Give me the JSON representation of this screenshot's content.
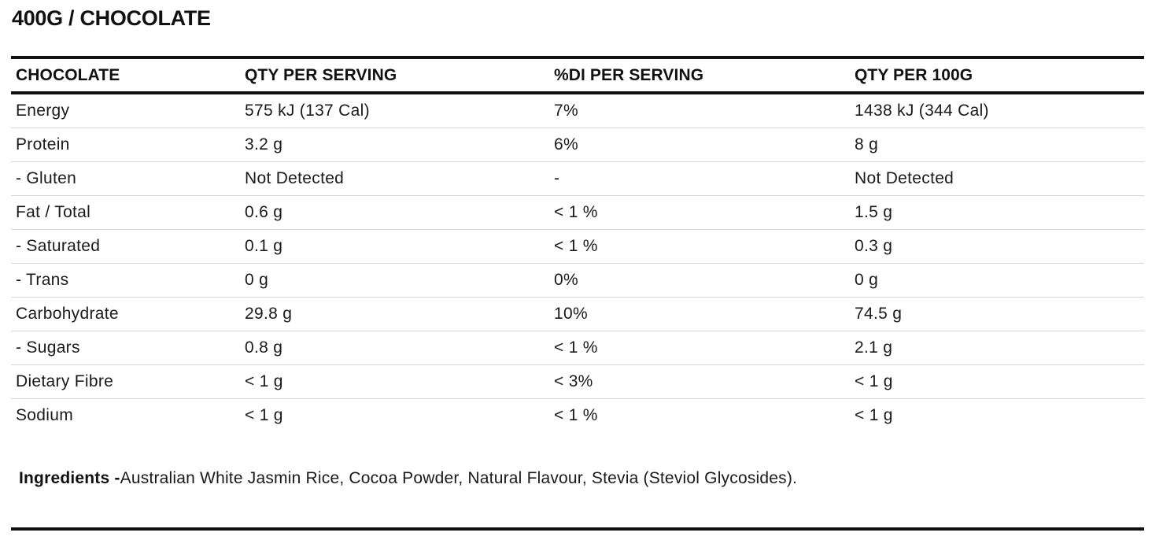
{
  "title": "400G / CHOCOLATE",
  "table": {
    "headers": [
      "CHOCOLATE",
      "QTY PER SERVING",
      "%DI PER SERVING",
      "QTY PER 100G"
    ],
    "rows": [
      [
        "Energy",
        "575 kJ (137 Cal)",
        "7%",
        "1438 kJ (344 Cal)"
      ],
      [
        "Protein",
        "3.2 g",
        "6%",
        "8 g"
      ],
      [
        "- Gluten",
        "Not Detected",
        "-",
        "Not Detected"
      ],
      [
        "Fat / Total",
        "0.6 g",
        "< 1 %",
        "1.5 g"
      ],
      [
        "- Saturated",
        "0.1 g",
        "< 1 %",
        "0.3 g"
      ],
      [
        "- Trans",
        "0 g",
        "0%",
        "0 g"
      ],
      [
        "Carbohydrate",
        "29.8 g",
        "10%",
        "74.5 g"
      ],
      [
        "- Sugars",
        "0.8 g",
        "< 1 %",
        "2.1 g"
      ],
      [
        "Dietary Fibre",
        "< 1 g",
        "< 3%",
        "< 1 g"
      ],
      [
        "Sodium",
        "< 1 g",
        "< 1 %",
        "< 1 g"
      ]
    ]
  },
  "ingredients": {
    "label": "Ingredients -",
    "text": "Australian White Jasmin Rice, Cocoa Powder, Natural Flavour, Stevia (Steviol Glycosides)."
  }
}
